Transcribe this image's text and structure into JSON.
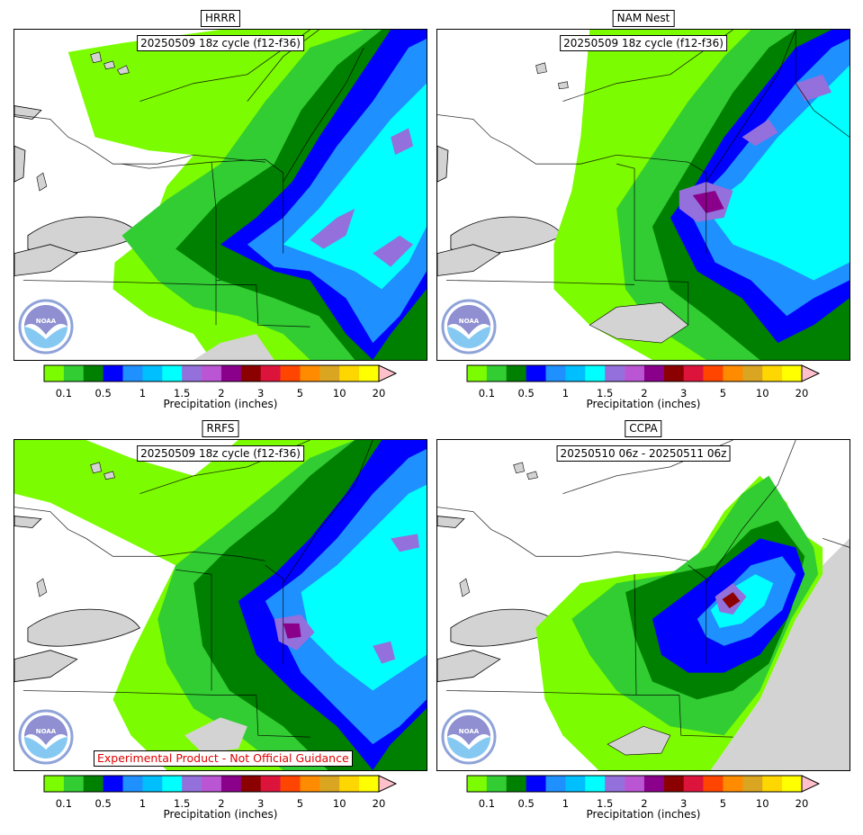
{
  "panels": [
    {
      "id": "hrrr",
      "title": "HRRR",
      "cycle": "20250509 18z cycle (f12-f36)",
      "experimental_note": ""
    },
    {
      "id": "nam",
      "title": "NAM Nest",
      "cycle": "20250509 18z cycle (f12-f36)",
      "experimental_note": ""
    },
    {
      "id": "rrfs",
      "title": "RRFS",
      "cycle": "20250509 18z cycle (f12-f36)",
      "experimental_note": "Experimental Product - Not Official Guidance"
    },
    {
      "id": "ccpa",
      "title": "CCPA",
      "cycle": "20250510 06z - 20250511 06z",
      "experimental_note": ""
    }
  ],
  "colorbar": {
    "label": "Precipitation (inches)",
    "tick_labels": [
      "0.1",
      "0.5",
      "1",
      "1.5",
      "2",
      "3",
      "5",
      "10",
      "20"
    ],
    "levels": [
      0.01,
      0.1,
      0.25,
      0.5,
      0.75,
      1,
      1.25,
      1.5,
      1.75,
      2,
      2.5,
      3,
      4,
      5,
      7,
      10,
      15,
      20
    ],
    "colors": [
      "#7cfc00",
      "#32cd32",
      "#008000",
      "#0000ff",
      "#1e90ff",
      "#00bfff",
      "#00ffff",
      "#9370db",
      "#ba55d3",
      "#8b008b",
      "#8b0000",
      "#dc143c",
      "#ff4500",
      "#ff8c00",
      "#daa520",
      "#ffd700",
      "#ffff00"
    ],
    "extend_color": "#ffc0cb"
  },
  "logo": {
    "text": "NOAA"
  },
  "icons": {
    "logo": "noaa-logo-icon",
    "colorbar_arrow": "triangle-right-icon"
  }
}
